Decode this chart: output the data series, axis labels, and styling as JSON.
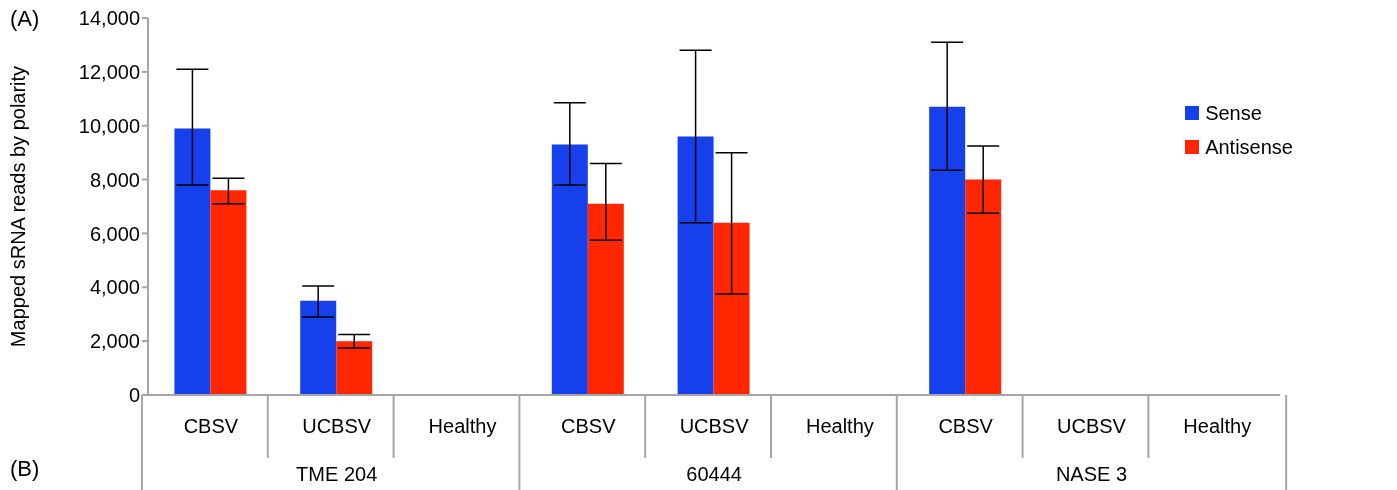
{
  "chart_data": {
    "type": "bar",
    "ylabel": "Mapped sRNA reads by polarity",
    "categories": [
      "CBSV",
      "UCBSV",
      "Healthy",
      "CBSV",
      "UCBSV",
      "Healthy",
      "CBSV",
      "UCBSV",
      "Healthy"
    ],
    "series": [
      {
        "name": "Sense",
        "color": "#1640ec",
        "values": [
          9900,
          3500,
          null,
          9300,
          9600,
          null,
          10700,
          null,
          null
        ],
        "errors": [
          [
            7800,
            12100
          ],
          [
            2900,
            4050
          ],
          null,
          [
            7800,
            10850
          ],
          [
            6400,
            12800
          ],
          null,
          [
            8350,
            13100
          ],
          null,
          null
        ]
      },
      {
        "name": "Antisense",
        "color": "#ff2600",
        "values": [
          7600,
          2000,
          null,
          7100,
          6400,
          null,
          8000,
          null,
          null
        ],
        "errors": [
          [
            7100,
            8050
          ],
          [
            1750,
            2250
          ],
          null,
          [
            5750,
            8600
          ],
          [
            3750,
            9000
          ],
          null,
          [
            6750,
            9250
          ],
          null,
          null
        ]
      }
    ],
    "ylim": [
      0,
      14000
    ],
    "yticks": [
      0,
      {
        "value": 2000,
        "label": "2,000"
      },
      {
        "value": 4000,
        "label": "4,000"
      },
      {
        "value": 6000,
        "label": "6,000"
      },
      {
        "value": 8000,
        "label": "8,000"
      },
      {
        "value": 10000,
        "label": "10,000"
      },
      {
        "value": 12000,
        "label": "12,000"
      },
      {
        "value": 14000,
        "label": "14,000"
      }
    ],
    "legend": "top right",
    "annotations": [
      "(A)",
      "(B)",
      "TME 204",
      "60444",
      "NASE 3"
    ]
  }
}
